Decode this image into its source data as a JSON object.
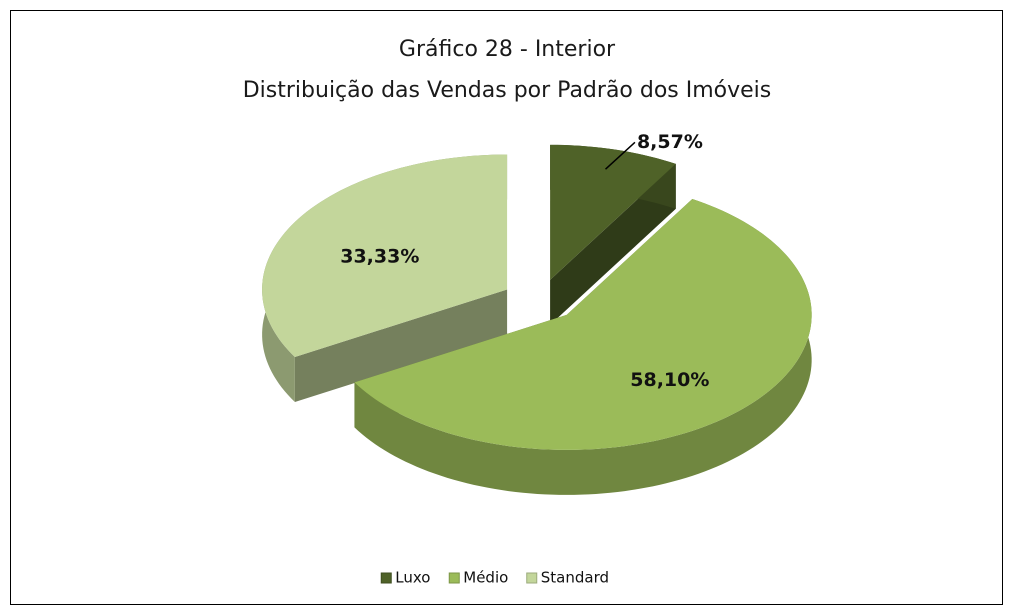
{
  "chart_data": {
    "type": "pie",
    "title": "Gráfico 28 - Interior",
    "subtitle": "Distribuição das Vendas por Padrão dos Imóveis",
    "categories": [
      "Luxo",
      "Médio",
      "Standard"
    ],
    "values": [
      8.57,
      58.1,
      33.33
    ],
    "value_labels": [
      "8,57%",
      "58,10%",
      "33,33%"
    ],
    "colors": [
      "#4f6228",
      "#9bbb59",
      "#c3d69b"
    ],
    "legend": "bottom"
  }
}
